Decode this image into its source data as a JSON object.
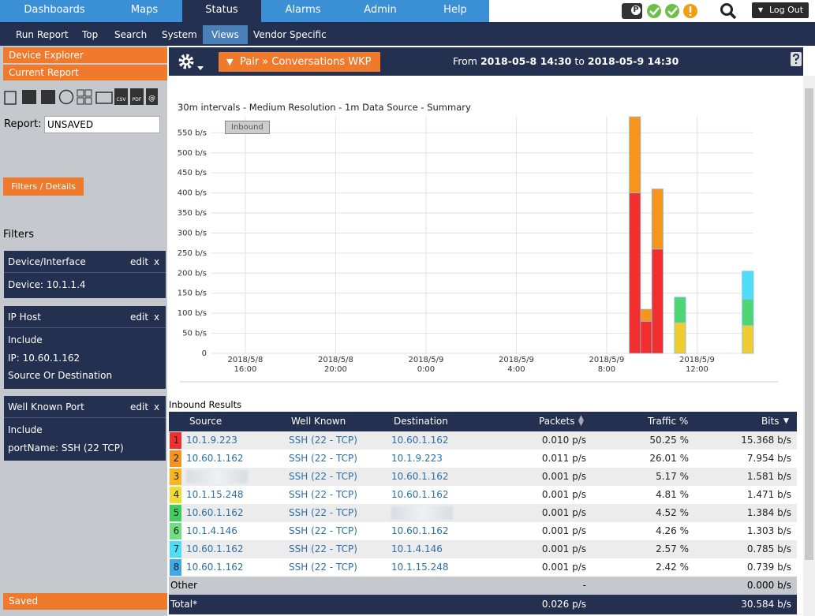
{
  "top_nav": {
    "tabs": [
      "Dashboards",
      "Maps",
      "Status",
      "Alarms",
      "Admin",
      "Help"
    ],
    "status_icon": "P",
    "logout": "Log Out"
  },
  "sub_nav": [
    "Run Report",
    "Top",
    "Search",
    "System",
    "Views",
    "Vendor Specific"
  ],
  "sidebar": {
    "device_explorer": "Device Explorer",
    "current_report": "Current Report",
    "icons": [
      "CSV",
      "PDF",
      "@"
    ],
    "report_label": "Report:",
    "report_name": "UNSAVED",
    "filters_button": "Filters / Details",
    "filters_title": "Filters",
    "filters": [
      {
        "title": "Device/Interface",
        "edit": "edit",
        "remove": "x",
        "lines": [
          "Device: 10.1.1.4"
        ]
      },
      {
        "title": "IP Host",
        "edit": "edit",
        "remove": "x",
        "lines": [
          "Include",
          "IP: 10.60.1.162",
          "Source Or Destination"
        ]
      },
      {
        "title": "Well Known Port",
        "edit": "edit",
        "remove": "x",
        "lines": [
          "Include",
          "portName: SSH (22 TCP)"
        ]
      }
    ],
    "saved": "Saved"
  },
  "report_header": {
    "report_menu": "Pair » Conversations WKP",
    "from": "From",
    "start": "2018-05-8 14:30",
    "to": "to",
    "end": "2018-05-9 14:30"
  },
  "chart_data": {
    "type": "bar",
    "stacked": true,
    "title": "30m intervals - Medium Resolution - 1m Data Source - Summary",
    "series_label": "Inbound",
    "x": [
      "2018-05-09 09:00",
      "2018-05-09 09:30",
      "2018-05-09 10:00",
      "2018-05-09 11:00",
      "2018-05-09 14:00"
    ],
    "xlim": [
      "2018-05-08 14:30",
      "2018-05-09 14:30"
    ],
    "xticks": [
      {
        "value": "2018-05-08 16:00",
        "label": "2018/5/8\n16:00"
      },
      {
        "value": "2018-05-08 20:00",
        "label": "2018/5/8\n20:00"
      },
      {
        "value": "2018-05-09 00:00",
        "label": "2018/5/9\n0:00"
      },
      {
        "value": "2018-05-09 04:00",
        "label": "2018/5/9\n4:00"
      },
      {
        "value": "2018-05-09 08:00",
        "label": "2018/5/9\n8:00"
      },
      {
        "value": "2018-05-09 12:00",
        "label": "2018/5/9\n12:00"
      }
    ],
    "ylim": [
      0,
      590
    ],
    "yticks": [
      0,
      {
        "value": 50,
        "label": "50 b/s"
      },
      {
        "value": 100,
        "label": "100 b/s"
      },
      {
        "value": 150,
        "label": "150 b/s"
      },
      {
        "value": 200,
        "label": "200 b/s"
      },
      {
        "value": 250,
        "label": "250 b/s"
      },
      {
        "value": 300,
        "label": "300 b/s"
      },
      {
        "value": 350,
        "label": "350 b/s"
      },
      {
        "value": 400,
        "label": "400 b/s"
      },
      {
        "value": 450,
        "label": "450 b/s"
      },
      {
        "value": 500,
        "label": "500 b/s"
      },
      {
        "value": 550,
        "label": "550 b/s"
      }
    ],
    "grid": true,
    "series": [
      {
        "color": "#f22f2f",
        "values": [
          400,
          80,
          260,
          null,
          null
        ]
      },
      {
        "color": "#f7941d",
        "values": [
          190,
          30,
          150,
          null,
          null
        ]
      },
      {
        "color": "#f0cc30",
        "values": [
          null,
          null,
          null,
          77,
          70
        ]
      },
      {
        "color": "#4fd673",
        "values": [
          null,
          null,
          null,
          63,
          65
        ]
      },
      {
        "color": "#4fdcf5",
        "values": [
          null,
          null,
          null,
          null,
          70
        ]
      }
    ]
  },
  "results": {
    "title": "Inbound Results",
    "columns": [
      "Source",
      "Well Known",
      "Destination",
      "Packets",
      "Traffic %",
      "Bits"
    ],
    "rank_colors": [
      "#f22f2f",
      "#f7941d",
      "#f5b621",
      "#efdc33",
      "#3fcd5f",
      "#6fe07f",
      "#4fdcf5",
      "#3fa9ee"
    ],
    "rows": [
      [
        "1",
        "10.1.9.223",
        "SSH (22 - TCP)",
        "10.60.1.162",
        "0.010 p/s",
        "50.25 %",
        "15.368 b/s"
      ],
      [
        "2",
        "10.60.1.162",
        "SSH (22 - TCP)",
        "10.1.9.223",
        "0.011 p/s",
        "26.01 %",
        "7.954 b/s"
      ],
      [
        "3",
        null,
        "SSH (22 - TCP)",
        "10.60.1.162",
        "0.001 p/s",
        "5.17 %",
        "1.581 b/s"
      ],
      [
        "4",
        "10.1.15.248",
        "SSH (22 - TCP)",
        "10.60.1.162",
        "0.001 p/s",
        "4.81 %",
        "1.471 b/s"
      ],
      [
        "5",
        "10.60.1.162",
        "SSH (22 - TCP)",
        null,
        "0.001 p/s",
        "4.52 %",
        "1.384 b/s"
      ],
      [
        "6",
        "10.1.4.146",
        "SSH (22 - TCP)",
        "10.60.1.162",
        "0.001 p/s",
        "4.26 %",
        "1.303 b/s"
      ],
      [
        "7",
        "10.60.1.162",
        "SSH (22 - TCP)",
        "10.1.4.146",
        "0.001 p/s",
        "2.57 %",
        "0.785 b/s"
      ],
      [
        "8",
        "10.60.1.162",
        "SSH (22 - TCP)",
        "10.1.15.248",
        "0.001 p/s",
        "2.42 %",
        "0.739 b/s"
      ]
    ],
    "other": [
      "Other",
      "-",
      "0.000 b/s"
    ],
    "total": [
      "Total*",
      "0.026 p/s",
      "30.584 b/s"
    ]
  }
}
